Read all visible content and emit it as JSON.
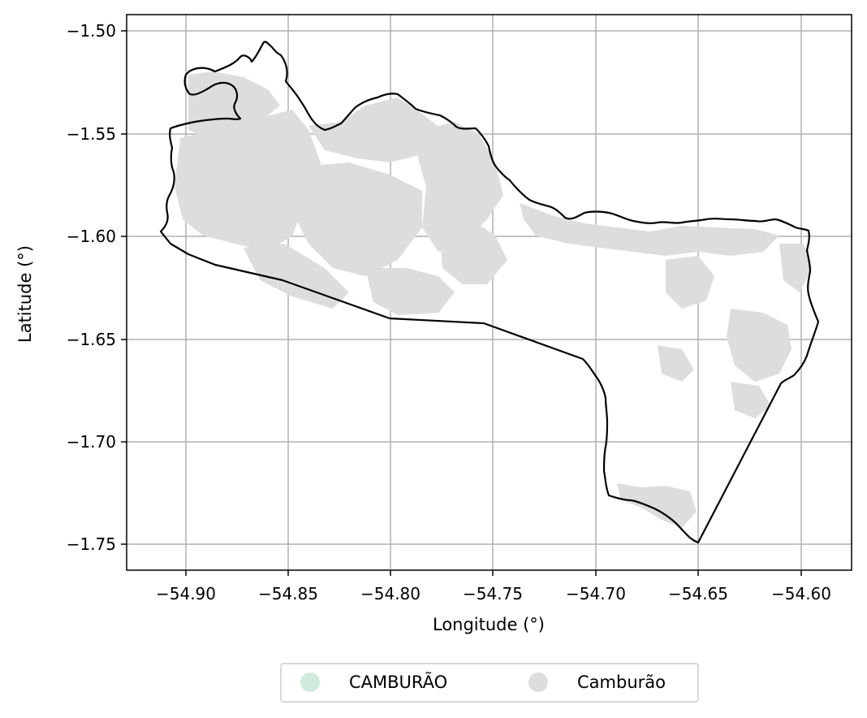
{
  "map": {
    "xlabel": "Longitude (°)",
    "ylabel": "Latitude (°)",
    "xlim": [
      -54.93,
      -54.575
    ],
    "ylim": [
      -1.763,
      -1.492
    ],
    "grid": true,
    "legend_position": "bottom-center",
    "x_ticks": [
      "−54.90",
      "−54.85",
      "−54.80",
      "−54.75",
      "−54.70",
      "−54.65",
      "−54.60"
    ],
    "y_ticks": [
      "−1.50",
      "−1.55",
      "−1.60",
      "−1.65",
      "−1.70",
      "−1.75"
    ],
    "legend": [
      {
        "label": "CAMBURÃO",
        "color": "#cfeadb"
      },
      {
        "label": "Camburão",
        "color": "#dddddd"
      }
    ],
    "boundary_color": "#000000",
    "fill_color": "#dddddd",
    "grid_color": "#b0b0b0"
  },
  "chart_data": {
    "type": "map",
    "x_tick_values": [
      -54.9,
      -54.85,
      -54.8,
      -54.75,
      -54.7,
      -54.65,
      -54.6
    ],
    "y_tick_values": [
      -1.5,
      -1.55,
      -1.6,
      -1.65,
      -1.7,
      -1.75
    ]
  }
}
